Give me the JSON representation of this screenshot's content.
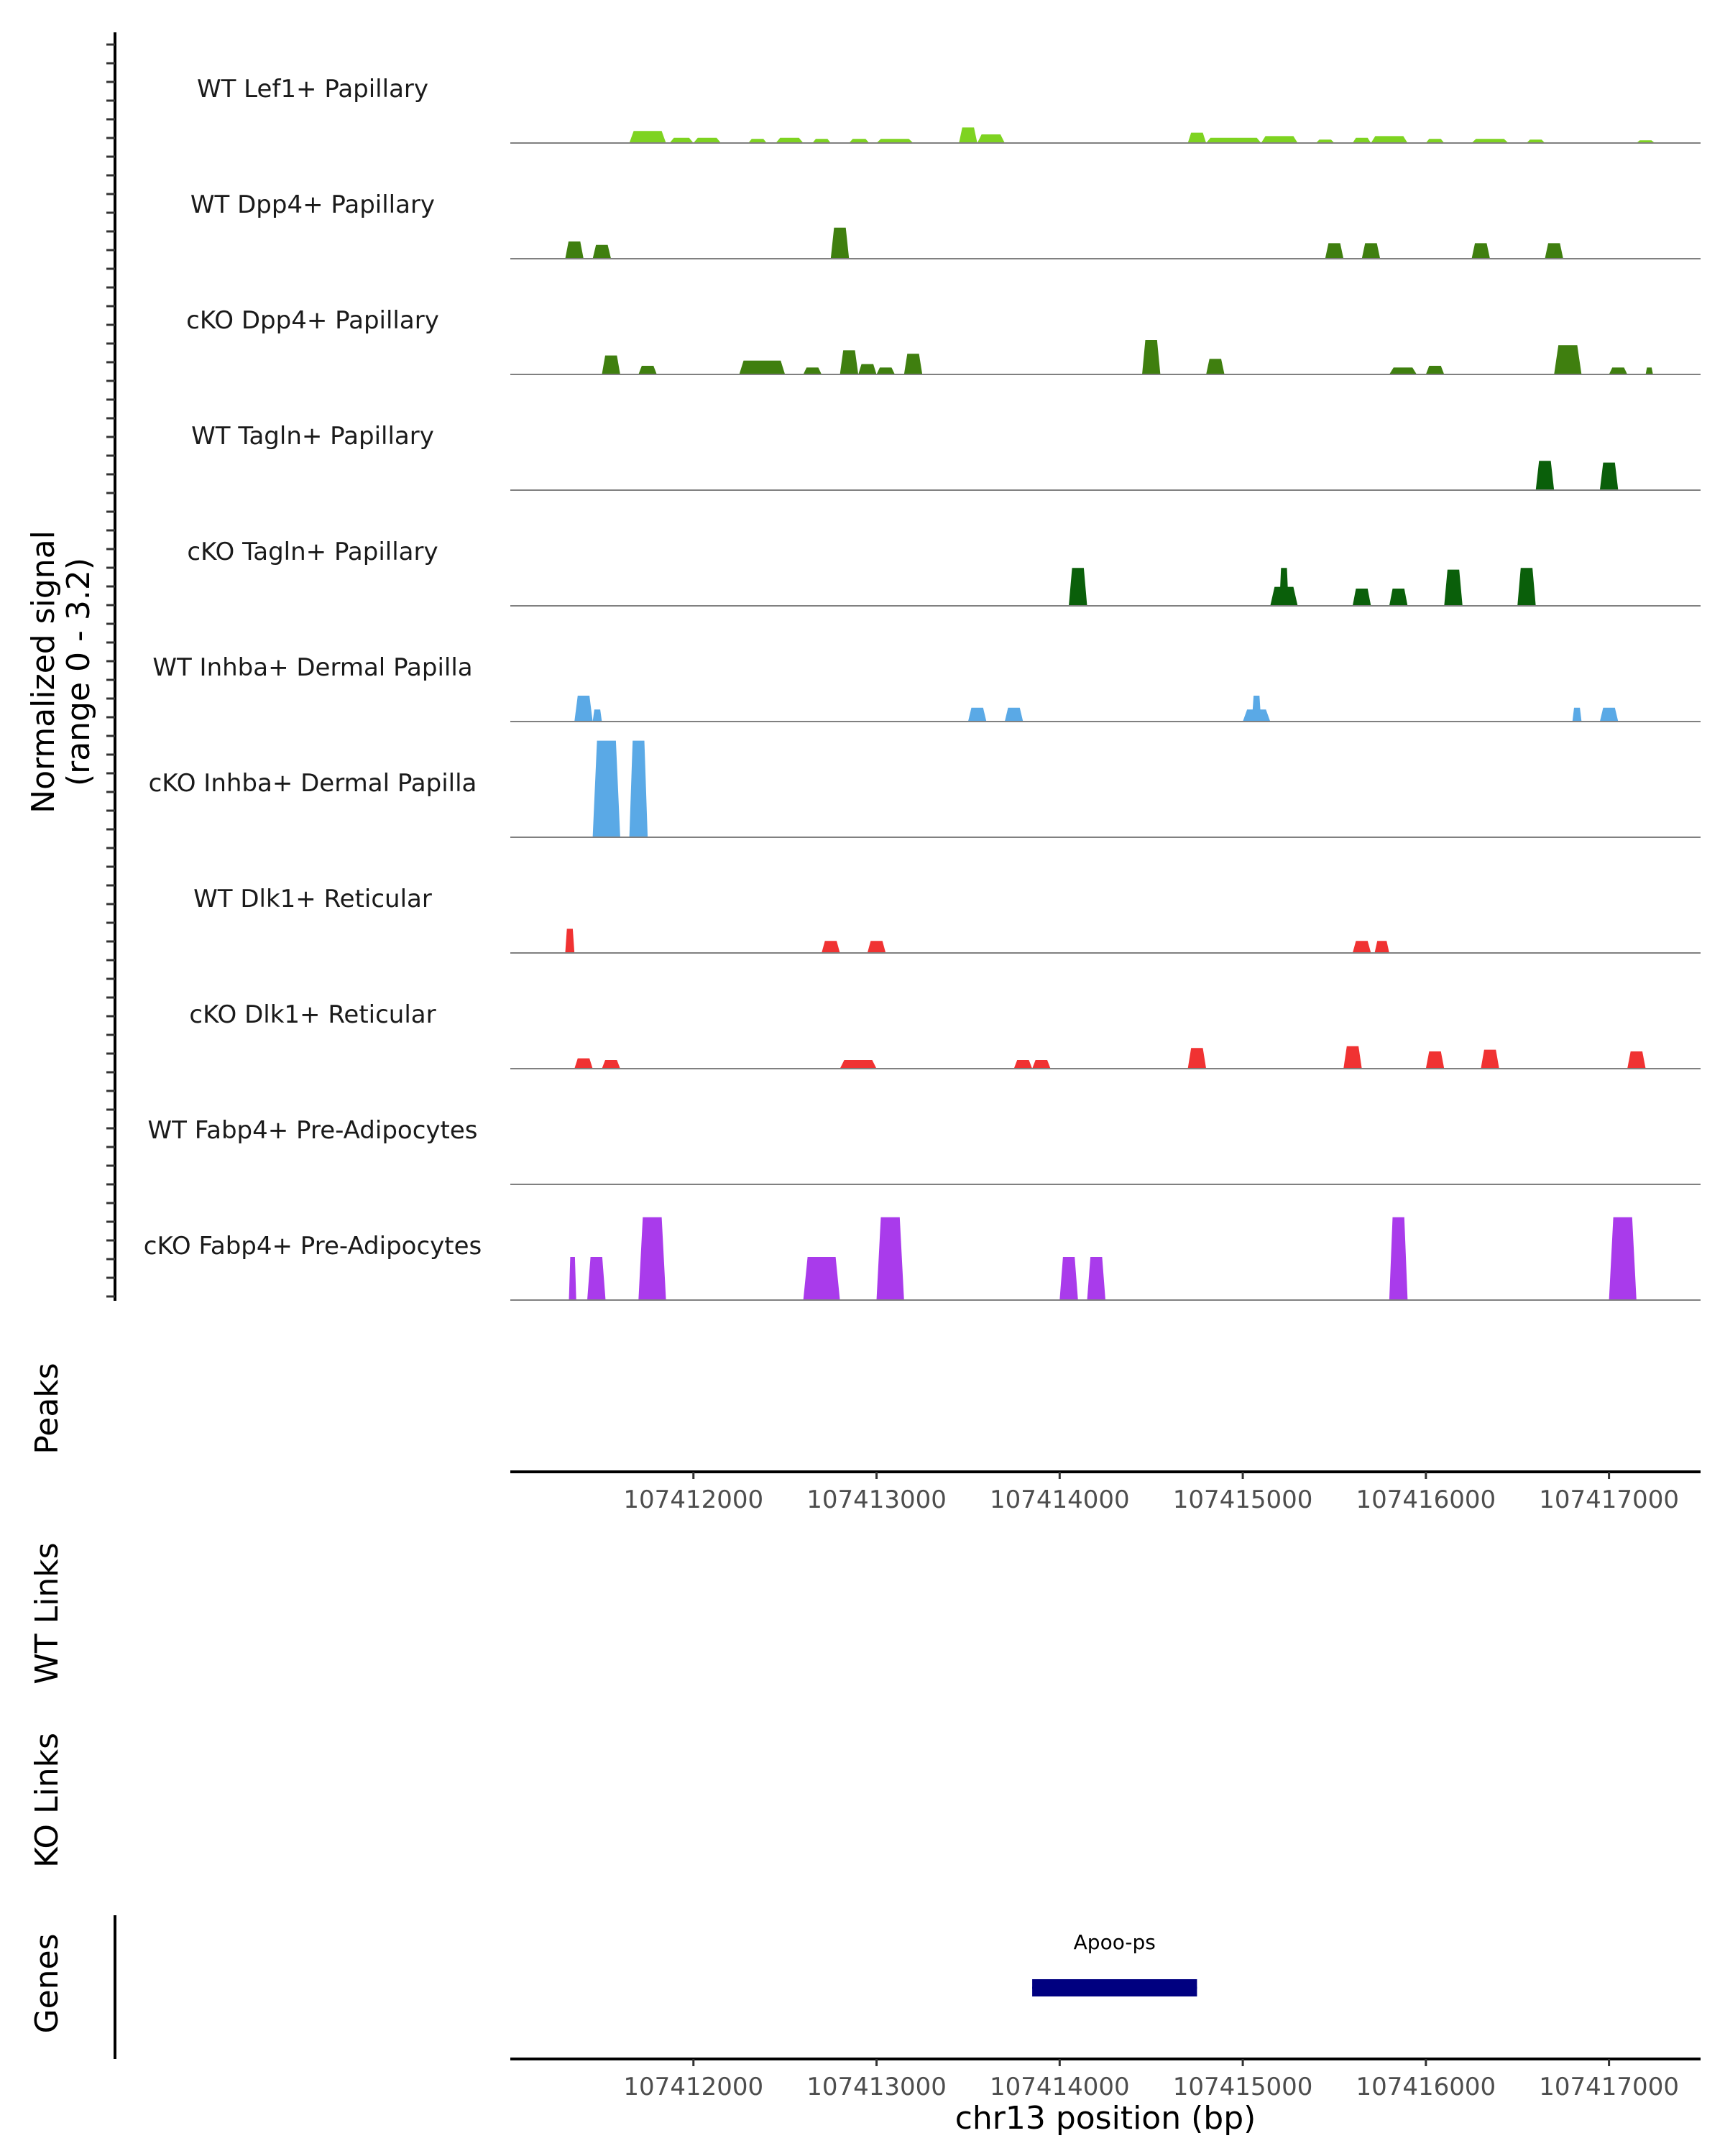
{
  "chart_data": {
    "type": "area",
    "title": "",
    "region": {
      "chrom": "chr13",
      "start": 107411000,
      "end": 107417500
    },
    "signal_axis": {
      "label_line1": "Normalized signal",
      "label_line2": "(range 0 - 3.2)",
      "ylim": [
        0,
        3.2
      ]
    },
    "xlabel": "chr13 position (bp)",
    "ticks": [
      107412000,
      107413000,
      107414000,
      107415000,
      107416000,
      107417000
    ],
    "tick_labels": [
      "107412000",
      "107413000",
      "107414000",
      "107415000",
      "107416000",
      "107417000"
    ],
    "colors": {
      "lef1": "#7ED321",
      "dpp4": "#3F7F0F",
      "tagln": "#0A5F0A",
      "inhba": "#5AA9E6",
      "dlk1": "#F03232",
      "fabp4": "#A93BEB",
      "gene": "#000080",
      "baseline": "#808080"
    },
    "series": [
      {
        "name": "WT Lef1+ Papillary",
        "color": "#7ED321",
        "peaks": [
          [
            107411650,
            107411850,
            0.35
          ],
          [
            107411870,
            107412000,
            0.15
          ],
          [
            107412000,
            107412150,
            0.15
          ],
          [
            107412300,
            107412400,
            0.12
          ],
          [
            107412450,
            107412600,
            0.15
          ],
          [
            107412650,
            107412750,
            0.12
          ],
          [
            107412850,
            107412960,
            0.12
          ],
          [
            107413000,
            107413200,
            0.12
          ],
          [
            107413450,
            107413550,
            0.45
          ],
          [
            107413550,
            107413700,
            0.25
          ],
          [
            107414700,
            107414800,
            0.3
          ],
          [
            107414800,
            107415100,
            0.15
          ],
          [
            107415100,
            107415300,
            0.2
          ],
          [
            107415400,
            107415500,
            0.1
          ],
          [
            107415600,
            107415700,
            0.15
          ],
          [
            107415700,
            107415900,
            0.2
          ],
          [
            107416000,
            107416100,
            0.12
          ],
          [
            107416250,
            107416450,
            0.12
          ],
          [
            107416550,
            107416650,
            0.1
          ],
          [
            107417150,
            107417250,
            0.08
          ]
        ]
      },
      {
        "name": "WT Dpp4+ Papillary",
        "color": "#3F7F0F",
        "peaks": [
          [
            107411300,
            107411400,
            0.5
          ],
          [
            107411450,
            107411550,
            0.4
          ],
          [
            107412750,
            107412850,
            0.9
          ],
          [
            107415450,
            107415550,
            0.45
          ],
          [
            107415650,
            107415750,
            0.45
          ],
          [
            107416250,
            107416350,
            0.45
          ],
          [
            107416650,
            107416750,
            0.45
          ]
        ]
      },
      {
        "name": "cKO Dpp4+ Papillary",
        "color": "#3F7F0F",
        "peaks": [
          [
            107411500,
            107411600,
            0.55
          ],
          [
            107411700,
            107411800,
            0.25
          ],
          [
            107412250,
            107412500,
            0.4
          ],
          [
            107412600,
            107412700,
            0.2
          ],
          [
            107412800,
            107412900,
            0.7
          ],
          [
            107412900,
            107413000,
            0.3
          ],
          [
            107413000,
            107413100,
            0.2
          ],
          [
            107413150,
            107413250,
            0.6
          ],
          [
            107414450,
            107414550,
            1.0
          ],
          [
            107414800,
            107414900,
            0.45
          ],
          [
            107415800,
            107415950,
            0.2
          ],
          [
            107416000,
            107416100,
            0.25
          ],
          [
            107416700,
            107416850,
            0.85
          ],
          [
            107417000,
            107417100,
            0.2
          ],
          [
            107417200,
            107417240,
            0.2
          ]
        ]
      },
      {
        "name": "WT Tagln+ Papillary",
        "color": "#0A5F0A",
        "peaks": [
          [
            107416600,
            107416700,
            0.85
          ],
          [
            107416950,
            107417050,
            0.8
          ]
        ]
      },
      {
        "name": "cKO Tagln+ Papillary",
        "color": "#0A5F0A",
        "peaks": [
          [
            107414050,
            107414150,
            1.1
          ],
          [
            107415200,
            107415250,
            1.1
          ],
          [
            107415150,
            107415300,
            0.55
          ],
          [
            107415600,
            107415700,
            0.5
          ],
          [
            107415800,
            107415900,
            0.5
          ],
          [
            107416100,
            107416200,
            1.05
          ],
          [
            107416500,
            107416600,
            1.1
          ]
        ]
      },
      {
        "name": "WT Inhba+ Dermal Papilla",
        "color": "#5AA9E6",
        "peaks": [
          [
            107411350,
            107411450,
            0.75
          ],
          [
            107411450,
            107411500,
            0.35
          ],
          [
            107413500,
            107413600,
            0.4
          ],
          [
            107413700,
            107413800,
            0.4
          ],
          [
            107415050,
            107415100,
            0.75
          ],
          [
            107415000,
            107415150,
            0.35
          ],
          [
            107416800,
            107416850,
            0.4
          ],
          [
            107416950,
            107417050,
            0.4
          ]
        ]
      },
      {
        "name": "cKO Inhba+ Dermal Papilla",
        "color": "#5AA9E6",
        "peaks": [
          [
            107411450,
            107411600,
            2.8
          ],
          [
            107411650,
            107411750,
            2.8
          ]
        ]
      },
      {
        "name": "WT Dlk1+ Reticular",
        "color": "#F03232",
        "peaks": [
          [
            107411300,
            107411350,
            0.7
          ],
          [
            107412700,
            107412800,
            0.35
          ],
          [
            107412950,
            107413050,
            0.35
          ],
          [
            107415600,
            107415700,
            0.35
          ],
          [
            107415720,
            107415800,
            0.35
          ]
        ]
      },
      {
        "name": "cKO Dlk1+ Reticular",
        "color": "#F03232",
        "peaks": [
          [
            107411350,
            107411450,
            0.3
          ],
          [
            107411500,
            107411600,
            0.25
          ],
          [
            107412800,
            107413000,
            0.25
          ],
          [
            107413750,
            107413850,
            0.25
          ],
          [
            107413850,
            107413950,
            0.25
          ],
          [
            107414700,
            107414800,
            0.6
          ],
          [
            107415550,
            107415650,
            0.65
          ],
          [
            107416000,
            107416100,
            0.5
          ],
          [
            107416300,
            107416400,
            0.55
          ],
          [
            107417100,
            107417200,
            0.5
          ]
        ]
      },
      {
        "name": "WT Fabp4+ Pre-Adipocytes",
        "color": "#A93BEB",
        "peaks": []
      },
      {
        "name": "cKO Fabp4+ Pre-Adipocytes",
        "color": "#A93BEB",
        "peaks": [
          [
            107411320,
            107411360,
            1.25
          ],
          [
            107411420,
            107411520,
            1.25
          ],
          [
            107411700,
            107411850,
            2.4
          ],
          [
            107412600,
            107412800,
            1.25
          ],
          [
            107413000,
            107413150,
            2.4
          ],
          [
            107414000,
            107414100,
            1.25
          ],
          [
            107414150,
            107414250,
            1.25
          ],
          [
            107415800,
            107415900,
            2.4
          ],
          [
            107417000,
            107417150,
            2.4
          ]
        ]
      }
    ],
    "side_titles": {
      "peaks": "Peaks",
      "wt_links": "WT Links",
      "ko_links": "KO Links",
      "genes": "Genes"
    },
    "genes": [
      {
        "name": "Apoo-ps",
        "start": 107413850,
        "end": 107414750
      }
    ]
  }
}
